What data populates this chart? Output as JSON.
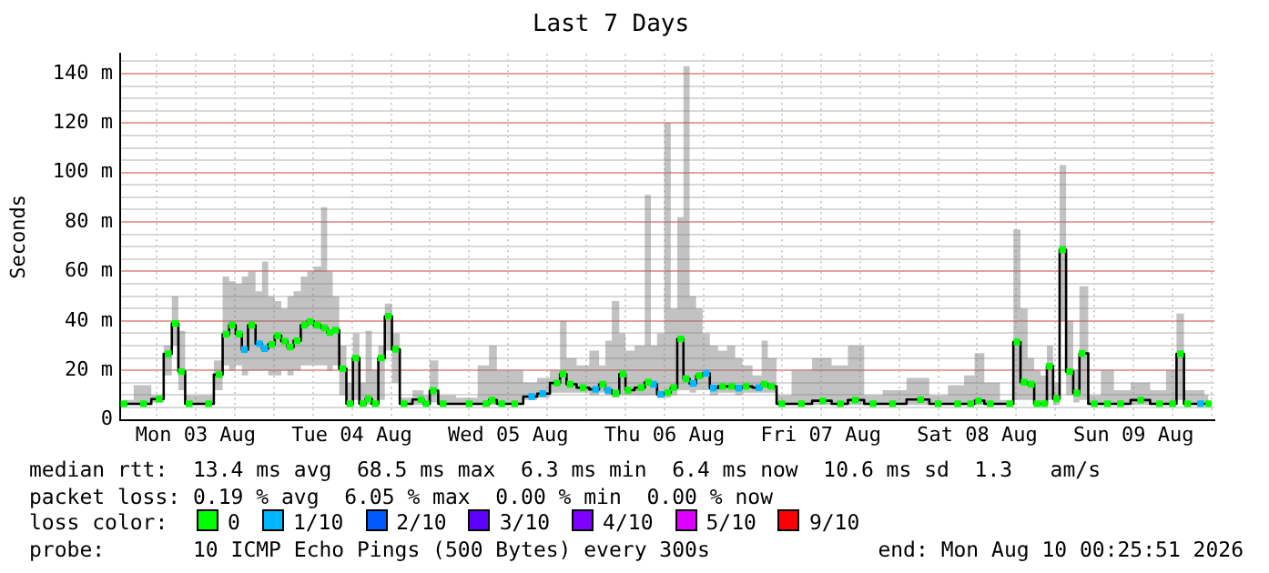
{
  "chart_data": {
    "type": "step",
    "title": "Last 7 Days",
    "ylabel": "Seconds",
    "legend_title": "loss color:",
    "legend": "bottom",
    "grid": true,
    "xlim": [
      "2026-08-03T00:25",
      "2026-08-10T00:25"
    ],
    "xticks": [
      {
        "value": "2026-08-03T06:00",
        "label": null
      },
      {
        "value": "2026-08-03T12:00",
        "label": "Mon 03 Aug"
      },
      {
        "value": "2026-08-03T18:00",
        "label": null
      },
      {
        "value": "2026-08-04T00:00",
        "label": null
      },
      {
        "value": "2026-08-04T06:00",
        "label": null
      },
      {
        "value": "2026-08-04T12:00",
        "label": "Tue 04 Aug"
      },
      {
        "value": "2026-08-04T18:00",
        "label": null
      },
      {
        "value": "2026-08-05T00:00",
        "label": null
      },
      {
        "value": "2026-08-05T06:00",
        "label": null
      },
      {
        "value": "2026-08-05T12:00",
        "label": "Wed 05 Aug"
      },
      {
        "value": "2026-08-05T18:00",
        "label": null
      },
      {
        "value": "2026-08-06T00:00",
        "label": null
      },
      {
        "value": "2026-08-06T06:00",
        "label": null
      },
      {
        "value": "2026-08-06T12:00",
        "label": "Thu 06 Aug"
      },
      {
        "value": "2026-08-06T18:00",
        "label": null
      },
      {
        "value": "2026-08-07T00:00",
        "label": null
      },
      {
        "value": "2026-08-07T06:00",
        "label": null
      },
      {
        "value": "2026-08-07T12:00",
        "label": "Fri 07 Aug"
      },
      {
        "value": "2026-08-07T18:00",
        "label": null
      },
      {
        "value": "2026-08-08T00:00",
        "label": null
      },
      {
        "value": "2026-08-08T06:00",
        "label": null
      },
      {
        "value": "2026-08-08T12:00",
        "label": "Sat 08 Aug"
      },
      {
        "value": "2026-08-08T18:00",
        "label": null
      },
      {
        "value": "2026-08-09T00:00",
        "label": null
      },
      {
        "value": "2026-08-09T06:00",
        "label": null
      },
      {
        "value": "2026-08-09T12:00",
        "label": "Sun 09 Aug"
      },
      {
        "value": "2026-08-09T18:00",
        "label": null
      },
      {
        "value": "2026-08-10T00:00",
        "label": null
      }
    ],
    "ylim": [
      0,
      148
    ],
    "yticks": [
      0,
      {
        "value": 5,
        "label": null
      },
      {
        "value": 10,
        "label": null
      },
      {
        "value": 15,
        "label": null
      },
      {
        "value": 20,
        "label": "20 m"
      },
      {
        "value": 25,
        "label": null
      },
      {
        "value": 30,
        "label": null
      },
      {
        "value": 35,
        "label": null
      },
      {
        "value": 40,
        "label": "40 m"
      },
      {
        "value": 45,
        "label": null
      },
      {
        "value": 50,
        "label": null
      },
      {
        "value": 55,
        "label": null
      },
      {
        "value": 60,
        "label": "60 m"
      },
      {
        "value": 65,
        "label": null
      },
      {
        "value": 70,
        "label": null
      },
      {
        "value": 75,
        "label": null
      },
      {
        "value": 80,
        "label": "80 m"
      },
      {
        "value": 85,
        "label": null
      },
      {
        "value": 90,
        "label": null
      },
      {
        "value": 95,
        "label": null
      },
      {
        "value": 100,
        "label": "100 m"
      },
      {
        "value": 105,
        "label": null
      },
      {
        "value": 110,
        "label": null
      },
      {
        "value": 115,
        "label": null
      },
      {
        "value": 120,
        "label": "120 m"
      },
      {
        "value": 125,
        "label": null
      },
      {
        "value": 130,
        "label": null
      },
      {
        "value": 135,
        "label": null
      },
      {
        "value": 140,
        "label": "140 m"
      },
      {
        "value": 145,
        "label": null
      }
    ],
    "x": [
      "2026-08-03T01:00",
      "2026-08-03T04:00",
      "2026-08-03T06:24",
      "2026-08-03T07:48",
      "2026-08-03T08:54",
      "2026-08-03T09:48",
      "2026-08-03T11:00",
      "2026-08-03T14:00",
      "2026-08-03T15:36",
      "2026-08-03T16:42",
      "2026-08-03T17:36",
      "2026-08-03T18:42",
      "2026-08-03T19:30",
      "2026-08-03T20:36",
      "2026-08-03T21:48",
      "2026-08-03T22:36",
      "2026-08-03T23:42",
      "2026-08-04T00:36",
      "2026-08-04T01:42",
      "2026-08-04T02:30",
      "2026-08-04T03:36",
      "2026-08-04T04:42",
      "2026-08-04T05:36",
      "2026-08-04T06:42",
      "2026-08-04T07:48",
      "2026-08-04T08:36",
      "2026-08-04T09:30",
      "2026-08-04T10:36",
      "2026-08-04T11:42",
      "2026-08-04T12:36",
      "2026-08-04T13:42",
      "2026-08-04T14:30",
      "2026-08-04T15:36",
      "2026-08-04T16:30",
      "2026-08-04T17:36",
      "2026-08-04T18:42",
      "2026-08-04T20:00",
      "2026-08-04T22:36",
      "2026-08-04T23:24",
      "2026-08-05T00:30",
      "2026-08-05T02:00",
      "2026-08-05T06:00",
      "2026-08-05T08:36",
      "2026-08-05T09:30",
      "2026-08-05T11:00",
      "2026-08-05T13:00",
      "2026-08-05T15:36",
      "2026-08-05T17:18",
      "2026-08-05T19:30",
      "2026-08-05T20:24",
      "2026-08-05T21:30",
      "2026-08-05T23:30",
      "2026-08-06T01:24",
      "2026-08-06T02:30",
      "2026-08-06T03:18",
      "2026-08-06T04:30",
      "2026-08-06T05:36",
      "2026-08-06T06:24",
      "2026-08-06T08:24",
      "2026-08-06T09:30",
      "2026-08-06T10:18",
      "2026-08-06T11:24",
      "2026-08-06T12:30",
      "2026-08-06T13:24",
      "2026-08-06T14:30",
      "2026-08-06T15:18",
      "2026-08-06T16:24",
      "2026-08-06T17:18",
      "2026-08-06T18:24",
      "2026-08-06T19:30",
      "2026-08-06T20:54",
      "2026-08-06T22:18",
      "2026-08-06T23:24",
      "2026-08-07T00:30",
      "2026-08-07T02:30",
      "2026-08-07T03:18",
      "2026-08-07T04:24",
      "2026-08-07T06:00",
      "2026-08-07T09:00",
      "2026-08-07T12:18",
      "2026-08-07T15:00",
      "2026-08-07T17:18",
      "2026-08-07T20:00",
      "2026-08-07T23:00",
      "2026-08-08T03:18",
      "2026-08-08T06:00",
      "2026-08-08T09:00",
      "2026-08-08T11:00",
      "2026-08-08T12:12",
      "2026-08-08T14:00",
      "2026-08-08T17:00",
      "2026-08-08T18:06",
      "2026-08-08T19:12",
      "2026-08-08T20:18",
      "2026-08-08T21:12",
      "2026-08-08T22:18",
      "2026-08-08T23:06",
      "2026-08-09T00:12",
      "2026-08-09T01:06",
      "2026-08-09T02:12",
      "2026-08-09T03:18",
      "2026-08-09T04:06",
      "2026-08-09T06:00",
      "2026-08-09T08:00",
      "2026-08-09T10:00",
      "2026-08-09T13:06",
      "2026-08-09T16:00",
      "2026-08-09T18:00",
      "2026-08-09T19:12",
      "2026-08-09T20:18",
      "2026-08-09T22:18",
      "2026-08-09T23:30"
    ],
    "series": [
      {
        "color": "#000000",
        "values": [
          6.5,
          6.5,
          8.4,
          26.7,
          39,
          19.5,
          6.5,
          6.5,
          18.3,
          34.6,
          38.3,
          34.7,
          28.4,
          38.3,
          30.8,
          28.8,
          30.5,
          34,
          31.8,
          29.4,
          32,
          38.3,
          39.7,
          38.3,
          37.2,
          35.3,
          36.3,
          20.7,
          6.5,
          25,
          6.5,
          8.5,
          6.5,
          25,
          41.9,
          28.5,
          6.5,
          8.2,
          6.5,
          11.8,
          6.5,
          6.5,
          6.5,
          8,
          6.5,
          6.5,
          9.4,
          10.6,
          14.9,
          18.5,
          14.4,
          13,
          12.3,
          14.4,
          12,
          10.8,
          18.5,
          12,
          13,
          15.2,
          14.4,
          10.3,
          11,
          13,
          32.7,
          16.6,
          14.7,
          17.8,
          18.8,
          12.8,
          13.5,
          13.5,
          12.8,
          13.5,
          13,
          14.4,
          13.5,
          6.5,
          6.5,
          7.7,
          6.5,
          8,
          6.5,
          6.5,
          8.2,
          6.5,
          6.5,
          6.5,
          7.7,
          6.5,
          6.5,
          31.5,
          15.2,
          14.4,
          6.5,
          6.5,
          21.7,
          8.5,
          68.8,
          19.5,
          10.8,
          26.9,
          6.5,
          6.5,
          6.5,
          8,
          6.5,
          6.5,
          26.7,
          6.5,
          6.5,
          6.5
        ],
        "lower": [
          6,
          6,
          7,
          18,
          30,
          12,
          6,
          6,
          12,
          22,
          20,
          22,
          18,
          20,
          20,
          20,
          18,
          18,
          20,
          18,
          20,
          22,
          22,
          22,
          22,
          20,
          22,
          10,
          6,
          8,
          6,
          6,
          6,
          8,
          28,
          15,
          6,
          6,
          6,
          7,
          6,
          6,
          6,
          6,
          6,
          6,
          8,
          9,
          11,
          11,
          11,
          11,
          10,
          11,
          10,
          9,
          10,
          10,
          10,
          10,
          10,
          9,
          9,
          10,
          12,
          12,
          11,
          12,
          12,
          10,
          11,
          11,
          10,
          11,
          11,
          11,
          11,
          6,
          6,
          6,
          6,
          6,
          6,
          6,
          6,
          6,
          6,
          6,
          6,
          6,
          6,
          8,
          8,
          8,
          6,
          6,
          8,
          6,
          40,
          10,
          7,
          8,
          6,
          6,
          6,
          6,
          6,
          6,
          8,
          6,
          6,
          6
        ],
        "upper": [
          8,
          14,
          10,
          30,
          50,
          36,
          10,
          10,
          24,
          58,
          56,
          55,
          58,
          60,
          52,
          64,
          50,
          48,
          45,
          50,
          52,
          58,
          60,
          62,
          86,
          60,
          50,
          30,
          15,
          35,
          15,
          36,
          20,
          30,
          47,
          35,
          9,
          12,
          10,
          24,
          10,
          9,
          22,
          30,
          20,
          20,
          15,
          17,
          20,
          40,
          25,
          22,
          28,
          22,
          32,
          48,
          35,
          28,
          30,
          91,
          30,
          35,
          120,
          45,
          82,
          143,
          50,
          45,
          35,
          30,
          28,
          30,
          25,
          22,
          18,
          32,
          25,
          10,
          20,
          25,
          22,
          30,
          10,
          12,
          17,
          10,
          14,
          18,
          27,
          15,
          8,
          77,
          45,
          25,
          20,
          18,
          30,
          15,
          103,
          40,
          20,
          54,
          10,
          20,
          12,
          15,
          12,
          20,
          43,
          12,
          12,
          10
        ]
      },
      {
        "type": "scatter",
        "name": "0",
        "color": "#00ff00",
        "marker": "square",
        "values": [
          6.5,
          6.5,
          8.4,
          26.7,
          39,
          19.5,
          6.5,
          6.5,
          18.3,
          34.6,
          38.3,
          34.7,
          null,
          38.3,
          null,
          null,
          30.5,
          34,
          31.8,
          29.4,
          32,
          38.3,
          39.7,
          38.3,
          37.2,
          35.3,
          36.3,
          20.7,
          6.5,
          25,
          6.5,
          8.5,
          6.5,
          25,
          41.9,
          28.5,
          6.5,
          8.2,
          6.5,
          11.8,
          6.5,
          6.5,
          6.5,
          8,
          6.5,
          6.5,
          null,
          null,
          14.9,
          18.5,
          14.4,
          13,
          null,
          14.4,
          null,
          10.8,
          18.5,
          12,
          13,
          15.2,
          null,
          null,
          11,
          13,
          32.7,
          16.6,
          null,
          17.8,
          null,
          null,
          13.5,
          13.5,
          null,
          13.5,
          null,
          14.4,
          13.5,
          6.5,
          6.5,
          7.7,
          6.5,
          8,
          6.5,
          6.5,
          8.2,
          6.5,
          6.5,
          6.5,
          7.7,
          6.5,
          6.5,
          31.5,
          15.2,
          14.4,
          6.5,
          6.5,
          21.7,
          8.5,
          68.8,
          19.5,
          10.8,
          26.9,
          6.5,
          6.5,
          6.5,
          8,
          6.5,
          6.5,
          26.7,
          6.5,
          null,
          6.5
        ]
      },
      {
        "type": "scatter",
        "name": "1/10",
        "color": "#00b8ff",
        "marker": "square",
        "x": [
          "2026-08-03T19:30",
          "2026-08-03T21:48",
          "2026-08-03T22:36",
          "2026-08-05T15:36",
          "2026-08-05T17:18",
          "2026-08-06T01:24",
          "2026-08-06T03:18",
          "2026-08-06T10:18",
          "2026-08-06T11:24",
          "2026-08-06T16:24",
          "2026-08-06T18:24",
          "2026-08-06T19:30",
          "2026-08-06T23:24",
          "2026-08-07T02:30",
          "2026-08-09T22:18"
        ],
        "values": [
          28.4,
          30.8,
          28.8,
          9.4,
          10.6,
          12.3,
          12,
          14.4,
          10.3,
          14.7,
          18.8,
          12.8,
          12.8,
          13,
          6.5
        ]
      },
      {
        "type": "scatter",
        "name": "2/10",
        "color": "#0059ff",
        "marker": "square",
        "values": [
          null,
          null,
          null,
          null,
          null,
          null,
          null,
          null,
          null,
          null,
          null,
          null,
          null,
          null,
          null,
          null,
          null,
          null,
          null,
          null,
          null,
          null,
          null,
          null,
          null,
          null,
          null,
          null,
          null,
          null,
          null,
          null,
          null,
          null,
          null,
          null,
          null,
          null,
          null,
          null,
          null,
          null,
          null,
          null,
          null,
          null,
          null,
          null,
          null,
          null,
          null,
          null,
          null,
          null,
          null,
          null,
          null,
          null,
          null,
          null,
          null,
          null,
          null,
          null,
          null,
          null,
          null,
          null,
          null,
          null,
          null,
          null,
          null,
          null,
          null,
          null,
          null,
          null,
          null,
          null,
          null,
          null,
          null,
          null,
          null,
          null,
          null,
          null,
          null,
          null,
          null,
          null,
          null,
          null,
          null,
          null,
          null,
          null,
          null,
          null,
          null,
          null,
          null,
          null,
          null,
          null,
          null,
          null,
          null,
          null,
          null,
          null
        ]
      },
      {
        "type": "scatter",
        "name": "3/10",
        "color": "#5e00ff",
        "marker": "square",
        "values": [
          null,
          null,
          null,
          null,
          null,
          null,
          null,
          null,
          null,
          null,
          null,
          null,
          null,
          null,
          null,
          null,
          null,
          null,
          null,
          null,
          null,
          null,
          null,
          null,
          null,
          null,
          null,
          null,
          null,
          null,
          null,
          null,
          null,
          null,
          null,
          null,
          null,
          null,
          null,
          null,
          null,
          null,
          null,
          null,
          null,
          null,
          null,
          null,
          null,
          null,
          null,
          null,
          null,
          null,
          null,
          null,
          null,
          null,
          null,
          null,
          null,
          null,
          null,
          null,
          null,
          null,
          null,
          null,
          null,
          null,
          null,
          null,
          null,
          null,
          null,
          null,
          null,
          null,
          null,
          null,
          null,
          null,
          null,
          null,
          null,
          null,
          null,
          null,
          null,
          null,
          null,
          null,
          null,
          null,
          null,
          null,
          null,
          null,
          null,
          null,
          null,
          null,
          null,
          null,
          null,
          null,
          null,
          null,
          null,
          null,
          null,
          null
        ]
      },
      {
        "type": "scatter",
        "name": "4/10",
        "color": "#7e00ff",
        "marker": "square",
        "values": [
          null,
          null,
          null,
          null,
          null,
          null,
          null,
          null,
          null,
          null,
          null,
          null,
          null,
          null,
          null,
          null,
          null,
          null,
          null,
          null,
          null,
          null,
          null,
          null,
          null,
          null,
          null,
          null,
          null,
          null,
          null,
          null,
          null,
          null,
          null,
          null,
          null,
          null,
          null,
          null,
          null,
          null,
          null,
          null,
          null,
          null,
          null,
          null,
          null,
          null,
          null,
          null,
          null,
          null,
          null,
          null,
          null,
          null,
          null,
          null,
          null,
          null,
          null,
          null,
          null,
          null,
          null,
          null,
          null,
          null,
          null,
          null,
          null,
          null,
          null,
          null,
          null,
          null,
          null,
          null,
          null,
          null,
          null,
          null,
          null,
          null,
          null,
          null,
          null,
          null,
          null,
          null,
          null,
          null,
          null,
          null,
          null,
          null,
          null,
          null,
          null,
          null,
          null,
          null,
          null,
          null,
          null,
          null,
          null,
          null,
          null,
          null
        ]
      },
      {
        "type": "scatter",
        "name": "5/10",
        "color": "#dd00ff",
        "marker": "square",
        "values": [
          null,
          null,
          null,
          null,
          null,
          null,
          null,
          null,
          null,
          null,
          null,
          null,
          null,
          null,
          null,
          null,
          null,
          null,
          null,
          null,
          null,
          null,
          null,
          null,
          null,
          null,
          null,
          null,
          null,
          null,
          null,
          null,
          null,
          null,
          null,
          null,
          null,
          null,
          null,
          null,
          null,
          null,
          null,
          null,
          null,
          null,
          null,
          null,
          null,
          null,
          null,
          null,
          null,
          null,
          null,
          null,
          null,
          null,
          null,
          null,
          null,
          null,
          null,
          null,
          null,
          null,
          null,
          null,
          null,
          null,
          null,
          null,
          null,
          null,
          null,
          null,
          null,
          null,
          null,
          null,
          null,
          null,
          null,
          null,
          null,
          null,
          null,
          null,
          null,
          null,
          null,
          null,
          null,
          null,
          null,
          null,
          null,
          null,
          null,
          null,
          null,
          null,
          null,
          null,
          null,
          null,
          null,
          null,
          null,
          null,
          null,
          null
        ]
      },
      {
        "type": "scatter",
        "name": "9/10",
        "color": "#ff0000",
        "marker": "square",
        "values": [
          null,
          null,
          null,
          null,
          null,
          null,
          null,
          null,
          null,
          null,
          null,
          null,
          null,
          null,
          null,
          null,
          null,
          null,
          null,
          null,
          null,
          null,
          null,
          null,
          null,
          null,
          null,
          null,
          null,
          null,
          null,
          null,
          null,
          null,
          null,
          null,
          null,
          null,
          null,
          null,
          null,
          null,
          null,
          null,
          null,
          null,
          null,
          null,
          null,
          null,
          null,
          null,
          null,
          null,
          null,
          null,
          null,
          null,
          null,
          null,
          null,
          null,
          null,
          null,
          null,
          null,
          null,
          null,
          null,
          null,
          null,
          null,
          null,
          null,
          null,
          null,
          null,
          null,
          null,
          null,
          null,
          null,
          null,
          null,
          null,
          null,
          null,
          null,
          null,
          null,
          null,
          null,
          null,
          null,
          null,
          null,
          null,
          null,
          null,
          null,
          null,
          null,
          null,
          null,
          null,
          null,
          null,
          null,
          null,
          null,
          null,
          null
        ]
      }
    ],
    "annotations": [
      "median rtt:  13.4 ms avg  68.5 ms max  6.3 ms min  6.4 ms now  10.6 ms sd  1.3   am/s",
      "packet loss: 0.19 % avg  6.05 % max  0.00 % min  0.00 % now",
      "probe:       10 ICMP Echo Pings (500 Bytes) every 300s",
      "end: Mon Aug 10 00:25:51 2026"
    ]
  }
}
